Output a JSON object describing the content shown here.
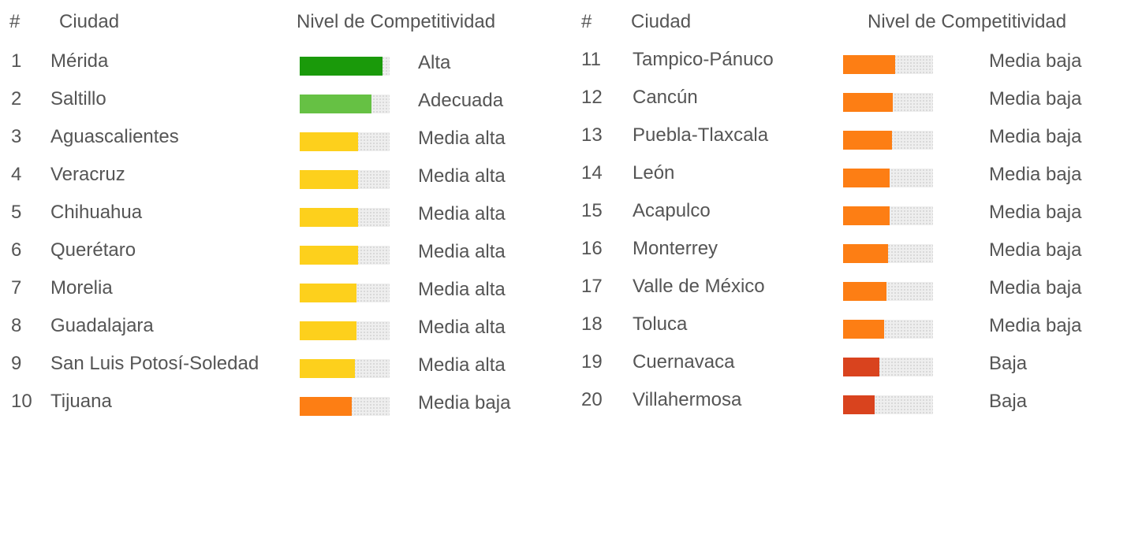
{
  "headers": {
    "rank": "#",
    "city": "Ciudad",
    "level": "Nivel de Competitividad"
  },
  "colors": {
    "Alta": "#1a9a0a",
    "Adecuada": "#66c144",
    "Media alta": "#fdd01c",
    "Media baja": "#fd7e14",
    "Baja": "#d9431e",
    "track": "#eeeeee"
  },
  "chart_data": {
    "type": "bar",
    "xlim": [
      0,
      1
    ],
    "rows": [
      {
        "rank": "1",
        "city": "Mérida",
        "value": 0.92,
        "level": "Alta"
      },
      {
        "rank": "2",
        "city": "Saltillo",
        "value": 0.8,
        "level": "Adecuada"
      },
      {
        "rank": "3",
        "city": "Aguascalientes",
        "value": 0.65,
        "level": "Media alta"
      },
      {
        "rank": "4",
        "city": "Veracruz",
        "value": 0.65,
        "level": "Media alta"
      },
      {
        "rank": "5",
        "city": "Chihuahua",
        "value": 0.65,
        "level": "Media alta"
      },
      {
        "rank": "6",
        "city": "Querétaro",
        "value": 0.65,
        "level": "Media alta"
      },
      {
        "rank": "7",
        "city": "Morelia",
        "value": 0.63,
        "level": "Media alta"
      },
      {
        "rank": "8",
        "city": "Guadalajara",
        "value": 0.63,
        "level": "Media alta"
      },
      {
        "rank": "9",
        "city": "San Luis Potosí-Soledad",
        "value": 0.61,
        "level": "Media alta"
      },
      {
        "rank": "10",
        "city": "Tijuana",
        "value": 0.58,
        "level": "Media baja"
      },
      {
        "rank": "11",
        "city": "Tampico-Pánuco",
        "value": 0.58,
        "level": "Media baja"
      },
      {
        "rank": "12",
        "city": "Cancún",
        "value": 0.55,
        "level": "Media baja"
      },
      {
        "rank": "13",
        "city": "Puebla-Tlaxcala",
        "value": 0.54,
        "level": "Media baja"
      },
      {
        "rank": "14",
        "city": "León",
        "value": 0.52,
        "level": "Media baja"
      },
      {
        "rank": "15",
        "city": "Acapulco",
        "value": 0.52,
        "level": "Media baja"
      },
      {
        "rank": "16",
        "city": "Monterrey",
        "value": 0.5,
        "level": "Media baja"
      },
      {
        "rank": "17",
        "city": "Valle de México",
        "value": 0.48,
        "level": "Media baja"
      },
      {
        "rank": "18",
        "city": "Toluca",
        "value": 0.46,
        "level": "Media baja"
      },
      {
        "rank": "19",
        "city": "Cuernavaca",
        "value": 0.4,
        "level": "Baja"
      },
      {
        "rank": "20",
        "city": "Villahermosa",
        "value": 0.35,
        "level": "Baja"
      }
    ]
  }
}
